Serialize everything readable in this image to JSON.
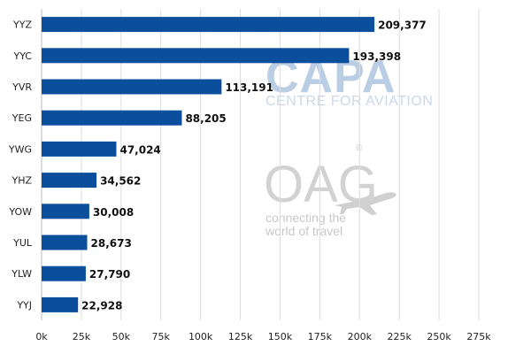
{
  "chart_data": {
    "type": "bar",
    "orientation": "horizontal",
    "categories": [
      "YYZ",
      "YYC",
      "YVR",
      "YEG",
      "YWG",
      "YHZ",
      "YOW",
      "YUL",
      "YLW",
      "YYJ"
    ],
    "values": [
      209377,
      193398,
      113191,
      88205,
      47024,
      34562,
      30008,
      28673,
      27790,
      22928
    ],
    "value_labels": [
      "209,377",
      "193,398",
      "113,191",
      "88,205",
      "47,024",
      "34,562",
      "30,008",
      "28,673",
      "27,790",
      "22,928"
    ],
    "x_ticks": [
      0,
      25000,
      50000,
      75000,
      100000,
      125000,
      150000,
      175000,
      200000,
      225000,
      250000,
      275000
    ],
    "x_tick_labels": [
      "0k",
      "25k",
      "50k",
      "75k",
      "100k",
      "125k",
      "150k",
      "175k",
      "200k",
      "225k",
      "250k",
      "275k"
    ],
    "xlim": [
      0,
      275000
    ],
    "grid": true,
    "bar_color": "#0b4f9c",
    "title": "",
    "xlabel": "",
    "ylabel": ""
  },
  "watermarks": {
    "capa": {
      "main": "CAPA",
      "sub": "CENTRE FOR AVIATION",
      "color": "#b9cde4"
    },
    "oag": {
      "main": "OAG",
      "registered": "®",
      "tagline_line1": "connecting the",
      "tagline_line2": "world of travel",
      "color": "#cccccc"
    }
  }
}
